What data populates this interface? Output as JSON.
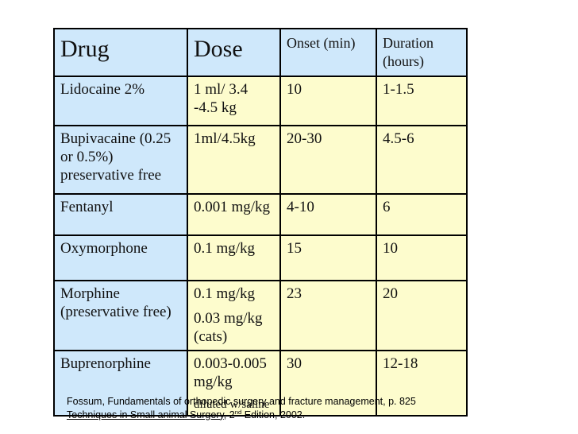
{
  "colors": {
    "header_blue": "#cfe8fb",
    "cell_yellow": "#fdfccd",
    "border": "#000000"
  },
  "table": {
    "headers": [
      {
        "label": "Drug",
        "large": true
      },
      {
        "label": "Dose",
        "large": true
      },
      {
        "label": "Onset (min)",
        "large": false
      },
      {
        "label": "Duration (hours)",
        "large": false
      }
    ],
    "rows": [
      {
        "drug": [
          {
            "text": "Lidocaine 2%"
          }
        ],
        "dose": [
          {
            "text": "1 ml/ 3.4 -4.5 kg"
          }
        ],
        "onset": "10",
        "duration": "1-1.5"
      },
      {
        "drug": [
          {
            "text": "Bupivacaine (0.25 or 0.5%) preservative free"
          }
        ],
        "dose": [
          {
            "text": "1ml/4.5kg"
          }
        ],
        "onset": "20-30",
        "duration": "4.5-6"
      },
      {
        "drug": [
          {
            "text": "Fentanyl"
          }
        ],
        "dose": [
          {
            "text": "0.001 mg/kg"
          }
        ],
        "onset": "4-10",
        "duration": "6"
      },
      {
        "drug": [
          {
            "text": "Oxymorphone"
          }
        ],
        "dose": [
          {
            "text": "0.1 mg/kg"
          }
        ],
        "onset": "15",
        "duration": "10"
      },
      {
        "drug": [
          {
            "text": "Morphine (preservative free)"
          }
        ],
        "dose": [
          {
            "text": "0.1 mg/kg"
          },
          {
            "text": "0.03 mg/kg (cats)"
          }
        ],
        "onset": "23",
        "duration": "20"
      },
      {
        "drug": [
          {
            "text": "Buprenorphine"
          }
        ],
        "dose": [
          {
            "text": "0.003-0.005 mg/kg"
          },
          {
            "text": "diluted w/saline",
            "small": true
          }
        ],
        "onset": "30",
        "duration": "12-18"
      }
    ]
  },
  "footer": {
    "line1": "Fossum, Fundamentals of orthopedic surgery and fracture management, p. 825",
    "line2": {
      "underlined": "Techniques in Small animal Surgery",
      "pre_sup": ", 2",
      "sup": "nd",
      "post": " Edition, 2002."
    }
  }
}
